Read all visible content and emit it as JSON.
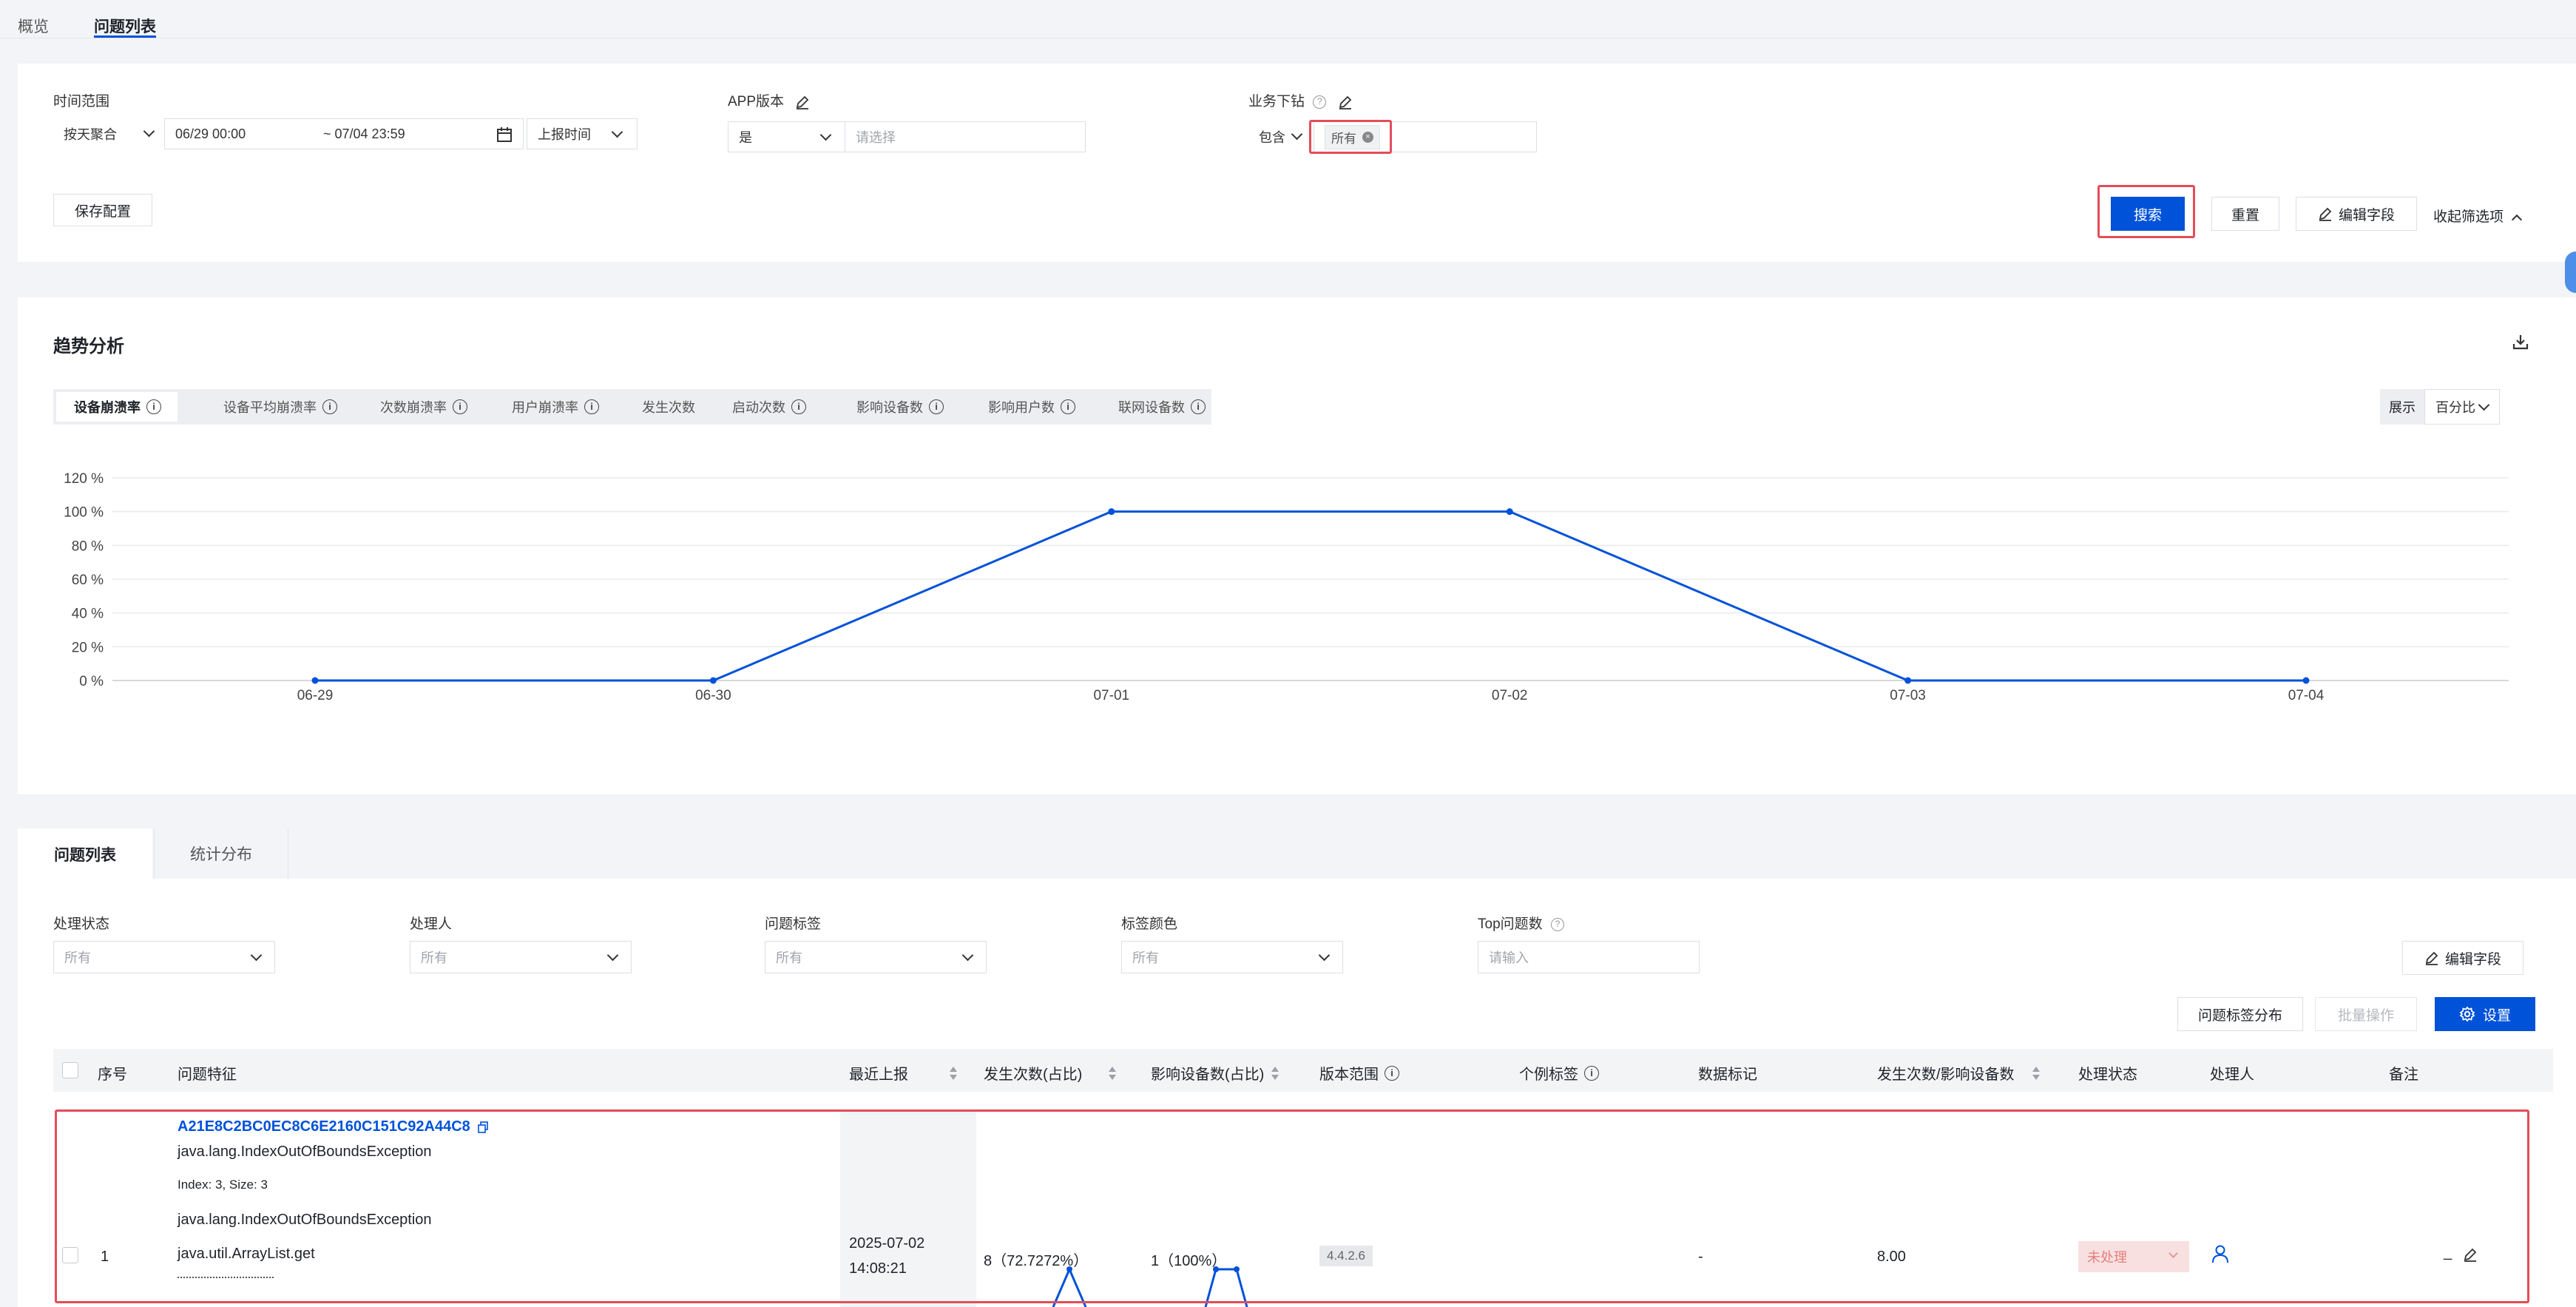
{
  "top_tabs": [
    {
      "label": "概览"
    },
    {
      "label": "问题列表"
    }
  ],
  "filters": {
    "time_range_label": "时间范围",
    "aggregate": "按天聚合",
    "date_start": "06/29 00:00",
    "date_end": "~ 07/04 23:59",
    "time_type": "上报时间",
    "app_version_label": "APP版本",
    "app_version_op": "是",
    "app_version_placeholder": "请选择",
    "biz_label": "业务下钻",
    "biz_op": "包含",
    "biz_tag": "所有",
    "save_config": "保存配置",
    "search": "搜索",
    "reset": "重置",
    "edit_fields": "编辑字段",
    "collapse": "收起筛选项"
  },
  "trend": {
    "title": "趋势分析",
    "tabs": [
      {
        "label": "设备崩溃率",
        "info": true
      },
      {
        "label": "设备平均崩溃率",
        "info": true
      },
      {
        "label": "次数崩溃率",
        "info": true
      },
      {
        "label": "用户崩溃率",
        "info": true
      },
      {
        "label": "发生次数",
        "info": false
      },
      {
        "label": "启动次数",
        "info": true
      },
      {
        "label": "影响设备数",
        "info": true
      },
      {
        "label": "影响用户数",
        "info": true
      },
      {
        "label": "联网设备数",
        "info": true
      }
    ],
    "display_label": "展示",
    "display_value": "百分比"
  },
  "chart_data": {
    "type": "line",
    "categories": [
      "06-29",
      "06-30",
      "07-01",
      "07-02",
      "07-03",
      "07-04"
    ],
    "series": [
      {
        "values": [
          0,
          0,
          100,
          100,
          0,
          0
        ],
        "color": "#0052d9"
      }
    ],
    "yticks": [
      "0 %",
      "20 %",
      "40 %",
      "60 %",
      "80 %",
      "100 %",
      "120 %"
    ],
    "ylim": [
      0,
      120
    ],
    "grid": true
  },
  "issues": {
    "tabs": [
      {
        "label": "问题列表"
      },
      {
        "label": "统计分布"
      }
    ],
    "filter_labels": {
      "status": "处理状态",
      "handler": "处理人",
      "tag": "问题标签",
      "tag_color": "标签颜色",
      "top": "Top问题数"
    },
    "filter_values": {
      "status": "所有",
      "handler": "所有",
      "tag": "所有",
      "tag_color": "所有",
      "top_placeholder": "请输入"
    },
    "edit_fields": "编辑字段",
    "tag_dist": "问题标签分布",
    "batch": "批量操作",
    "settings": "设置",
    "columns": [
      "序号",
      "问题特征",
      "最近上报",
      "发生次数(占比)",
      "影响设备数(占比)",
      "版本范围",
      "个例标签",
      "数据标记",
      "发生次数/影响设备数",
      "处理状态",
      "处理人",
      "备注"
    ],
    "rows": [
      {
        "index": "1",
        "hash": "A21E8C2BC0EC8C6E2160C151C92A44C8",
        "exception": "java.lang.IndexOutOfBoundsException",
        "detail": "Index: 3, Size: 3",
        "frame1": "java.lang.IndexOutOfBoundsException",
        "frame2": "java.util.ArrayList.get",
        "date": "2025-07-02",
        "time": "14:08:21",
        "count": "8（72.7272%）",
        "devices": "1（100%）",
        "version": "4.4.2.6",
        "mark": "-",
        "ratio": "8.00",
        "status": "未处理",
        "note": "_"
      }
    ]
  }
}
